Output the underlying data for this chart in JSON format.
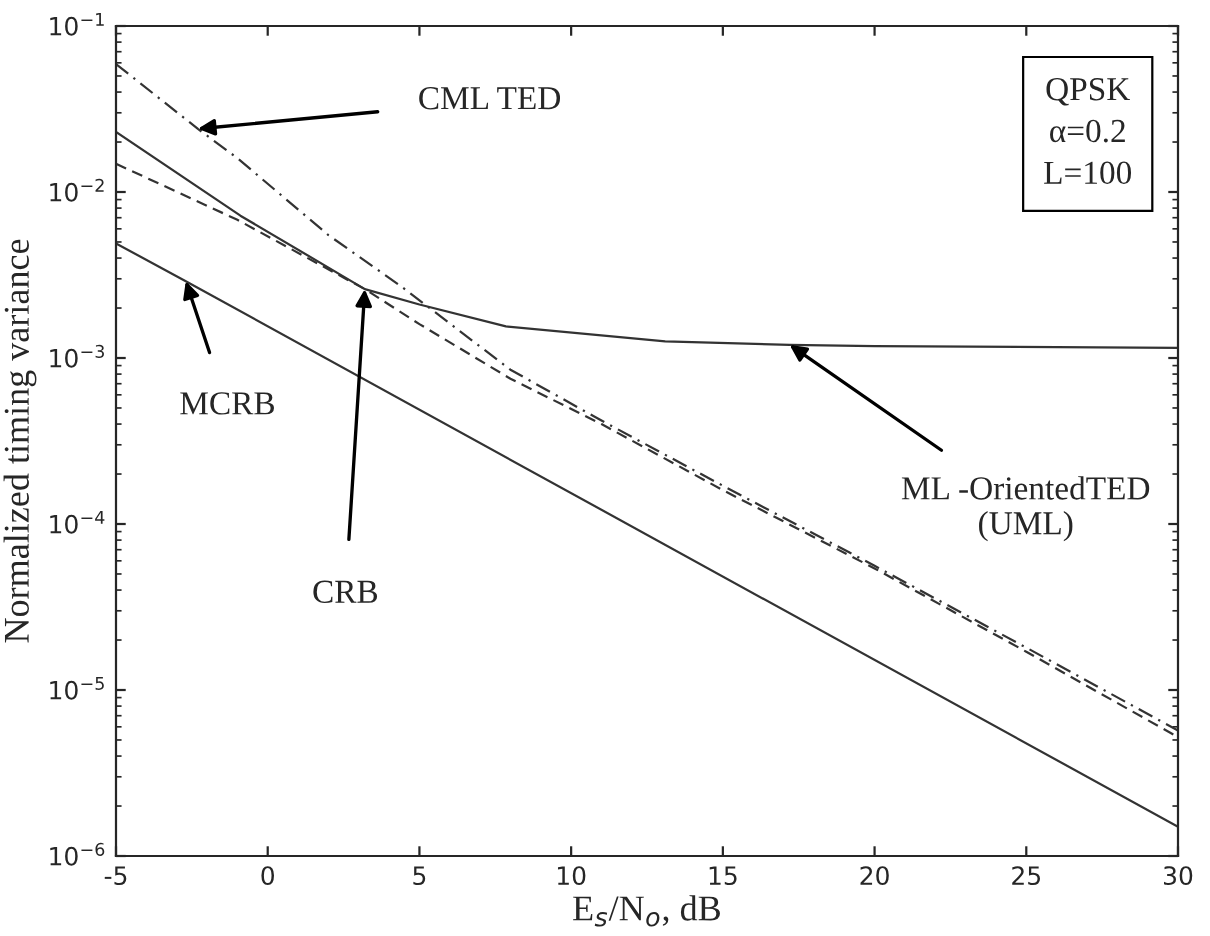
{
  "chart_data": {
    "type": "line",
    "xlabel": "E$_{s}$/N$_{o}$, dB",
    "ylabel": "Normalized timing variance",
    "log": "y",
    "grid": false,
    "legend": false,
    "marker": "none",
    "xlim": [
      -5,
      30
    ],
    "xticks": [
      -5,
      0,
      5,
      10,
      15,
      20,
      25,
      30
    ],
    "ylim": [
      1e-06,
      0.1
    ],
    "yticks": [
      {
        "value": 1e-06,
        "label": "10$^{−6}$"
      },
      {
        "value": 1e-05,
        "label": "10$^{−5}$"
      },
      {
        "value": 0.0001,
        "label": "10$^{−4}$"
      },
      {
        "value": 0.001,
        "label": "10$^{−3}$"
      },
      {
        "value": 0.01,
        "label": "10$^{−2}$"
      },
      {
        "value": 0.1,
        "label": "10$^{−1}$"
      }
    ],
    "series": [
      {
        "color": "#333333",
        "line_style": "solid",
        "x": [
          -5,
          -2.7,
          30
        ],
        "values": [
          0.0049,
          0.0029,
          1.5e-06
        ]
      },
      {
        "color": "#333333",
        "line_style": "dashed",
        "x": [
          -5,
          -1,
          3.2,
          5,
          8,
          11,
          15,
          20,
          25,
          30
        ],
        "values": [
          0.0148,
          0.0068,
          0.0026,
          0.0016,
          0.00075,
          0.0004,
          0.00016,
          5.4e-05,
          1.7e-05,
          5.2e-06
        ]
      },
      {
        "color": "#333333",
        "line_style": "dashdot",
        "x": [
          -5,
          -2.3,
          -1,
          2,
          4.4,
          8,
          11,
          15,
          20,
          25,
          30
        ],
        "values": [
          0.059,
          0.024,
          0.016,
          0.0055,
          0.0027,
          0.00085,
          0.00042,
          0.00017,
          5.6e-05,
          1.8e-05,
          5.7e-06
        ]
      },
      {
        "color": "#333333",
        "line_style": "solid",
        "x": [
          -5,
          -0.9,
          3.2,
          5,
          7.85,
          13.1,
          17.2,
          20,
          30
        ],
        "values": [
          0.023,
          0.0072,
          0.0026,
          0.0021,
          0.00155,
          0.00126,
          0.0012,
          0.00118,
          0.00115
        ]
      }
    ],
    "annotations": [
      {
        "text": "CML TED",
        "x": -2.3,
        "y": 0.024
      },
      {
        "text": "MCRB",
        "x": -2.7,
        "y": 0.0029
      },
      {
        "text": "CRB",
        "x": 3.2,
        "y": 0.0026
      },
      {
        "text": "ML -OrientedTED\n(UML)",
        "x": 17.2,
        "y": 0.0012
      },
      "QPSK\nα=0.2\nL=100"
    ]
  }
}
